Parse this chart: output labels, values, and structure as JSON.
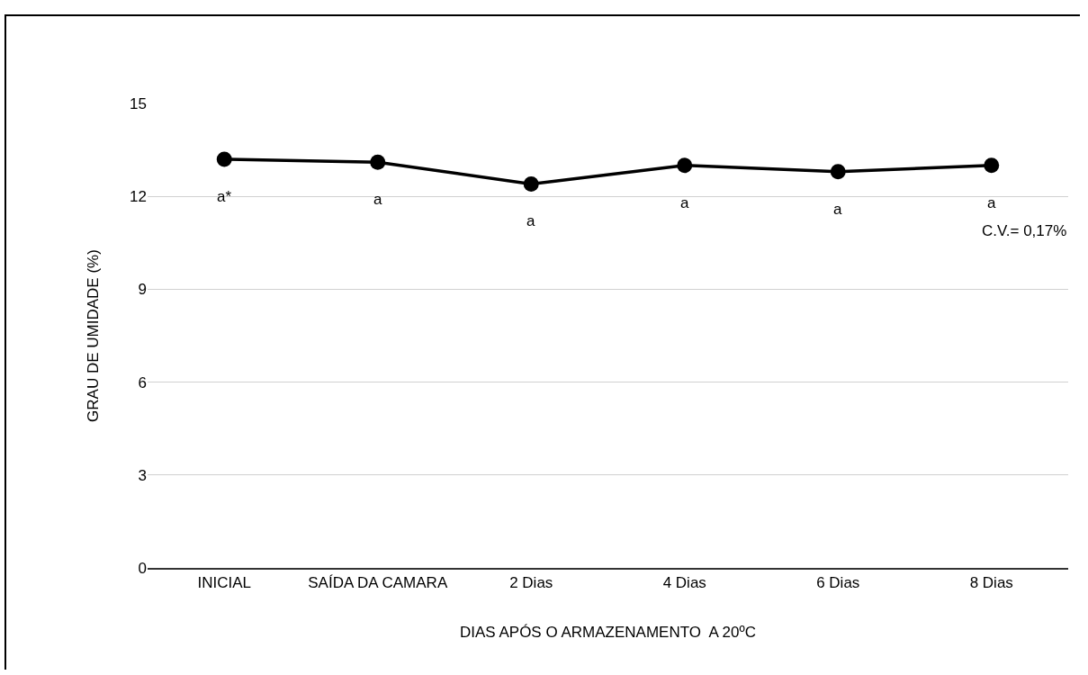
{
  "chart_data": {
    "type": "line",
    "xlabel": "DIAS APÓS O ARMAZENAMENTO  A 20ºC",
    "ylabel": "GRAU DE UMIDADE (%)",
    "categories": [
      "INICIAL",
      "SAÍDA DA CAMARA",
      "2 Dias",
      "4 Dias",
      "6 Dias",
      "8 Dias"
    ],
    "series": [
      {
        "color": "#000000",
        "values": [
          13.2,
          13.1,
          12.4,
          13.0,
          12.8,
          13.0
        ]
      }
    ],
    "ylim": [
      0,
      15
    ],
    "yticks": [
      0,
      3,
      6,
      9,
      12,
      15
    ],
    "grid": "y",
    "legend": false,
    "marker": "circle",
    "line_style": "solid",
    "annotations": [
      {
        "text": "a*",
        "x": "INICIAL",
        "y": 13.2
      },
      {
        "text": "a",
        "x": "SAÍDA DA CAMARA",
        "y": 13.1
      },
      {
        "text": "a",
        "x": "2 Dias",
        "y": 12.4
      },
      {
        "text": "a",
        "x": "4 Dias",
        "y": 13.0
      },
      {
        "text": "a",
        "x": "6 Dias",
        "y": 12.8
      },
      {
        "text": "a",
        "x": "8 Dias",
        "y": 13.0
      },
      "C.V.= 0,17%"
    ]
  }
}
